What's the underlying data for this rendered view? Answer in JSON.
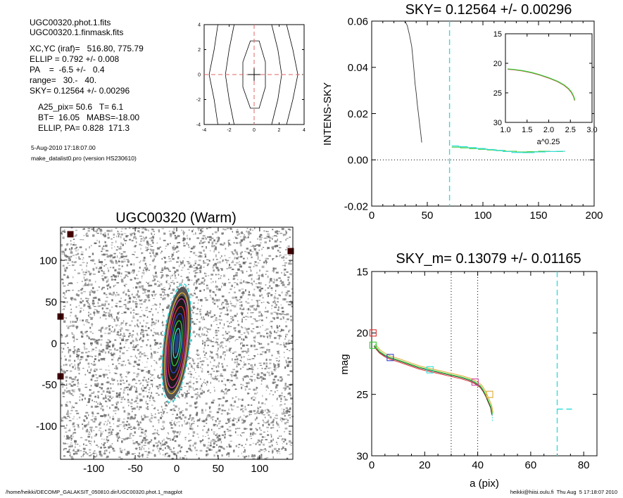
{
  "header": {
    "file1": "UGC00320.phot.1.fits",
    "file2": "UGC00320.1.finmask.fits",
    "lines": [
      "XC,YC (iraf)=   516.80, 775.79",
      "ELLIP = 0.792 +/- 0.008",
      "PA    =  -6.5 +/-   0.4",
      "range=   30.-   40.",
      "SKY= 0.12564 +/- 0.00296"
    ],
    "params": [
      "A25_pix= 50.6   T= 6.1",
      "BT=  16.05   MABS=-18.00",
      "ELLIP, PA= 0.828  171.3"
    ],
    "date": "5-Aug-2010 17:18:07.00",
    "program": "make_datalist0.pro (version HS230610)"
  },
  "footer": {
    "left": "/home/heikki/DECOMP_GALAKSIT_050810.dir/UGC00320.phot.1_magplot",
    "right": "heikki@hiisi.oulu.fi  Thu Aug  5 17:18:07 2010"
  },
  "colors": {
    "axis": "#000000",
    "contour": "#000000",
    "crosshair": "#e06666",
    "cyan": "#33dddd",
    "green": "#33cc33",
    "red": "#dd3333",
    "blue": "#3344cc",
    "magenta": "#cc44aa",
    "orange": "#ddaa33",
    "noise": "#6e6e6e"
  },
  "chart_data": [
    {
      "id": "contour",
      "type": "contour",
      "title": "",
      "xlim": [
        -4,
        4
      ],
      "ylim": [
        -4,
        4
      ],
      "xticks": [
        -4,
        -2,
        0,
        2,
        4
      ],
      "yticks": [
        -4,
        -2,
        0,
        2,
        4
      ],
      "crosshair": [
        0,
        0
      ],
      "contours": [
        [
          [
            -0.3,
            2.7
          ],
          [
            0.4,
            2.7
          ],
          [
            0.9,
            1.0
          ],
          [
            0.9,
            -1.0
          ],
          [
            0.4,
            -2.7
          ],
          [
            -0.3,
            -2.7
          ],
          [
            -0.9,
            -1.0
          ],
          [
            -0.9,
            1.0
          ]
        ]
      ],
      "open_contours": [
        [
          [
            -2.9,
            4
          ],
          [
            -3.2,
            2
          ],
          [
            -3.6,
            0
          ],
          [
            -3.2,
            -2
          ],
          [
            -2.9,
            -4
          ]
        ],
        [
          [
            -1.6,
            4
          ],
          [
            -2.0,
            2
          ],
          [
            -2.3,
            0
          ],
          [
            -2.0,
            -2
          ],
          [
            -1.6,
            -4
          ]
        ],
        [
          [
            1.4,
            4
          ],
          [
            1.9,
            2
          ],
          [
            2.2,
            0
          ],
          [
            1.9,
            -2
          ],
          [
            1.4,
            -4
          ]
        ],
        [
          [
            2.6,
            4
          ],
          [
            3.1,
            2
          ],
          [
            3.5,
            0
          ],
          [
            3.1,
            -2
          ],
          [
            2.6,
            -4
          ]
        ]
      ]
    },
    {
      "id": "sky",
      "type": "line",
      "title": "SKY= 0.12564 +/- 0.00296",
      "xlabel": "",
      "ylabel": "INTENS-SKY",
      "xlim": [
        0,
        200
      ],
      "ylim": [
        -0.02,
        0.06
      ],
      "xticks": [
        0,
        50,
        100,
        150,
        200
      ],
      "yticks": [
        -0.02,
        0.0,
        0.02,
        0.04,
        0.06
      ],
      "ytick_labels": [
        "-0.02",
        "0.00",
        "0.02",
        "0.04",
        "0.06"
      ],
      "zero_line": 0,
      "sky_vline": 70,
      "profile": [
        [
          30,
          0.06
        ],
        [
          32,
          0.058
        ],
        [
          34,
          0.054
        ],
        [
          36,
          0.049
        ],
        [
          37,
          0.044
        ],
        [
          38,
          0.039
        ],
        [
          39,
          0.033
        ],
        [
          40,
          0.029
        ],
        [
          41,
          0.024
        ],
        [
          42,
          0.02
        ],
        [
          43,
          0.016
        ],
        [
          44,
          0.012
        ],
        [
          45,
          0.0075
        ]
      ],
      "sky_series": [
        {
          "color": "green",
          "steps": [
            [
              72,
              0.0055
            ],
            [
              80,
              0.0052
            ],
            [
              88,
              0.0049
            ],
            [
              96,
              0.0046
            ],
            [
              104,
              0.0043
            ],
            [
              112,
              0.004
            ],
            [
              120,
              0.0037
            ],
            [
              130,
              0.0034
            ],
            [
              140,
              0.0035
            ],
            [
              150,
              0.0037
            ],
            [
              160,
              0.0036
            ],
            [
              172,
              0.0036
            ]
          ]
        },
        {
          "color": "cyan",
          "steps": [
            [
              72,
              0.006
            ],
            [
              78,
              0.0057
            ],
            [
              86,
              0.0053
            ],
            [
              94,
              0.0049
            ],
            [
              102,
              0.0045
            ],
            [
              110,
              0.0041
            ],
            [
              118,
              0.0036
            ],
            [
              126,
              0.0032
            ],
            [
              136,
              0.0031
            ],
            [
              146,
              0.0034
            ],
            [
              156,
              0.0036
            ],
            [
              166,
              0.0037
            ],
            [
              174,
              0.0037
            ]
          ]
        }
      ],
      "inset": {
        "xlabel": "a^0.25",
        "xlim": [
          1.0,
          3.0
        ],
        "ylim": [
          30,
          15
        ],
        "xticks": [
          1.0,
          1.5,
          2.0,
          2.5,
          3.0
        ],
        "xtick_labels": [
          "1.0",
          "1.5",
          "2.0",
          "2.5",
          "3.0"
        ],
        "yticks": [
          15,
          20,
          25,
          30
        ],
        "curve": [
          [
            1.05,
            21.0
          ],
          [
            1.2,
            21.1
          ],
          [
            1.4,
            21.3
          ],
          [
            1.6,
            21.6
          ],
          [
            1.8,
            22.0
          ],
          [
            2.0,
            22.5
          ],
          [
            2.2,
            23.1
          ],
          [
            2.35,
            23.7
          ],
          [
            2.45,
            24.3
          ],
          [
            2.52,
            24.9
          ],
          [
            2.57,
            25.6
          ],
          [
            2.6,
            26.3
          ]
        ]
      }
    },
    {
      "id": "image",
      "type": "image",
      "title": "UGC00320 (Warm)",
      "xlim": [
        -140,
        140
      ],
      "ylim": [
        -140,
        140
      ],
      "xticks": [
        -100,
        -50,
        0,
        50,
        100
      ],
      "yticks": [
        -100,
        -50,
        0,
        50,
        100
      ],
      "ellipse": {
        "center": [
          0,
          0
        ],
        "semi_major": 72,
        "ellip": 0.792,
        "pa_deg": -6.5
      }
    },
    {
      "id": "mag",
      "type": "line",
      "title": "SKY_m=  0.13079 +/- 0.01165",
      "xlabel": "a (pix)",
      "ylabel": "mag",
      "xlim": [
        0,
        85
      ],
      "ylim": [
        30,
        15
      ],
      "xticks": [
        0,
        20,
        40,
        60,
        80
      ],
      "yticks": [
        15,
        20,
        25,
        30
      ],
      "range_lines": [
        30,
        40
      ],
      "sky_vline": 70,
      "sky_hline": {
        "x": [
          70,
          76
        ],
        "y": 26.2
      },
      "profile": [
        [
          1,
          21.0
        ],
        [
          3,
          21.5
        ],
        [
          5,
          21.8
        ],
        [
          7,
          22.0
        ],
        [
          10,
          22.2
        ],
        [
          14,
          22.5
        ],
        [
          18,
          22.8
        ],
        [
          22,
          23.0
        ],
        [
          26,
          23.2
        ],
        [
          30,
          23.4
        ],
        [
          34,
          23.6
        ],
        [
          37,
          23.8
        ],
        [
          39,
          24.0
        ],
        [
          41,
          24.3
        ],
        [
          42,
          24.6
        ],
        [
          43,
          25.0
        ],
        [
          44,
          25.5
        ],
        [
          45,
          26.0
        ],
        [
          45.5,
          26.6
        ]
      ],
      "markers": [
        {
          "x": 0.5,
          "y": 20.0,
          "color": "red"
        },
        {
          "x": 0.5,
          "y": 21.0,
          "color": "green"
        },
        {
          "x": 7,
          "y": 22.0,
          "color": "blue"
        },
        {
          "x": 22,
          "y": 23.0,
          "color": "cyan"
        },
        {
          "x": 39,
          "y": 24.0,
          "color": "magenta"
        },
        {
          "x": 44.5,
          "y": 25.0,
          "color": "orange"
        }
      ]
    }
  ]
}
